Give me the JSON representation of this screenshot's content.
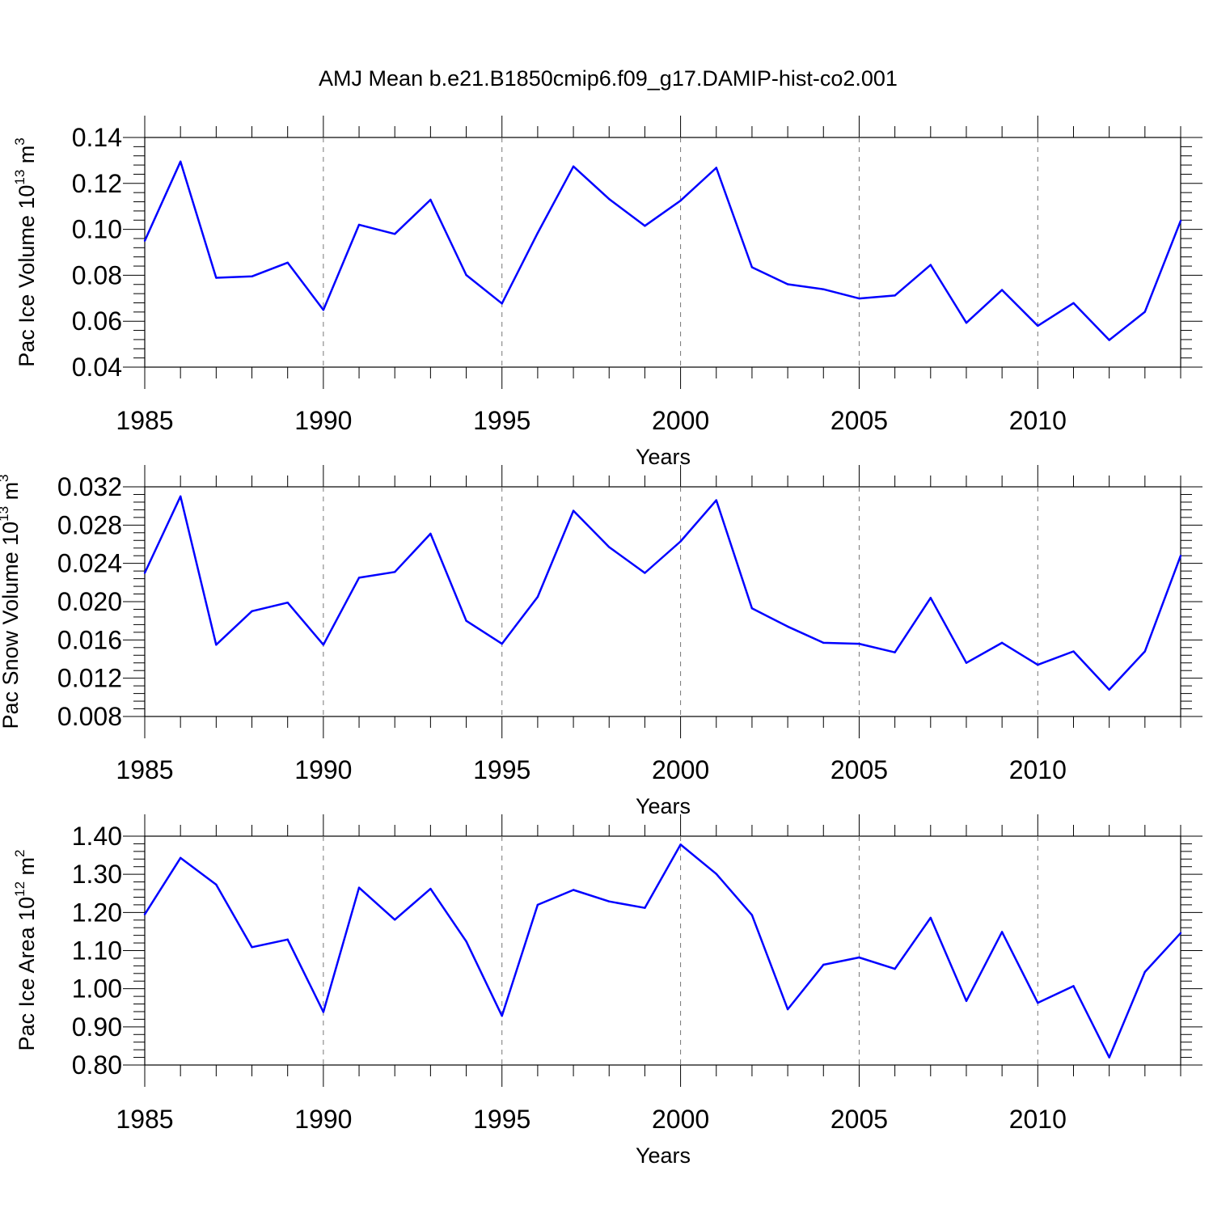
{
  "figure": {
    "title": "AMJ Mean b.e21.B1850cmip6.f09_g17.DAMIP-hist-co2.001"
  },
  "chart_data": [
    {
      "type": "line",
      "xlabel": "Years",
      "ylabel": {
        "text": "Pac Ice Volume 10",
        "exponent": "13",
        "unit": " m",
        "unit_exponent": "3"
      },
      "xlim": [
        1985,
        2014
      ],
      "ylim": [
        0.04,
        0.14
      ],
      "x_ticks": [
        "1985",
        "1990",
        "1995",
        "2000",
        "2005",
        "2010"
      ],
      "y_ticks": [
        "0.04",
        "0.06",
        "0.08",
        "0.10",
        "0.12",
        "0.14"
      ],
      "grid": "vertical dashed at labeled years",
      "color": "#0000ff",
      "x": [
        1985,
        1986,
        1987,
        1988,
        1989,
        1990,
        1991,
        1992,
        1993,
        1994,
        1995,
        1996,
        1997,
        1998,
        1999,
        2000,
        2001,
        2002,
        2003,
        2004,
        2005,
        2006,
        2007,
        2008,
        2009,
        2010,
        2011,
        2012,
        2013,
        2014
      ],
      "values": [
        0.095,
        0.1295,
        0.0789,
        0.0795,
        0.0855,
        0.0649,
        0.102,
        0.098,
        0.1129,
        0.0801,
        0.0677,
        0.0984,
        0.1274,
        0.1132,
        0.1015,
        0.1125,
        0.1268,
        0.0835,
        0.0761,
        0.0739,
        0.0699,
        0.0712,
        0.0845,
        0.0593,
        0.0736,
        0.058,
        0.0679,
        0.0518,
        0.0641,
        0.1037
      ]
    },
    {
      "type": "line",
      "xlabel": "Years",
      "ylabel": {
        "text": "Pac Snow Volume 10",
        "exponent": "13",
        "unit": " m",
        "unit_exponent": "3"
      },
      "xlim": [
        1985,
        2014
      ],
      "ylim": [
        0.008,
        0.032
      ],
      "x_ticks": [
        "1985",
        "1990",
        "1995",
        "2000",
        "2005",
        "2010"
      ],
      "y_ticks": [
        "0.008",
        "0.012",
        "0.016",
        "0.020",
        "0.024",
        "0.028",
        "0.032"
      ],
      "grid": "vertical dashed at labeled years",
      "color": "#0000ff",
      "x": [
        1985,
        1986,
        1987,
        1988,
        1989,
        1990,
        1991,
        1992,
        1993,
        1994,
        1995,
        1996,
        1997,
        1998,
        1999,
        2000,
        2001,
        2002,
        2003,
        2004,
        2005,
        2006,
        2007,
        2008,
        2009,
        2010,
        2011,
        2012,
        2013,
        2014
      ],
      "values": [
        0.023,
        0.031,
        0.0155,
        0.019,
        0.0199,
        0.0155,
        0.0225,
        0.0231,
        0.0271,
        0.018,
        0.0156,
        0.0205,
        0.0295,
        0.0257,
        0.023,
        0.0263,
        0.0306,
        0.0193,
        0.0174,
        0.0157,
        0.0156,
        0.0147,
        0.0204,
        0.0136,
        0.0157,
        0.0134,
        0.0148,
        0.0108,
        0.0148,
        0.0248
      ]
    },
    {
      "type": "line",
      "xlabel": "Years",
      "ylabel": {
        "text": "Pac Ice Area 10",
        "exponent": "12",
        "unit": " m",
        "unit_exponent": "2"
      },
      "xlim": [
        1985,
        2014
      ],
      "ylim": [
        0.8,
        1.4
      ],
      "x_ticks": [
        "1985",
        "1990",
        "1995",
        "2000",
        "2005",
        "2010"
      ],
      "y_ticks": [
        "0.80",
        "0.90",
        "1.00",
        "1.10",
        "1.20",
        "1.30",
        "1.40"
      ],
      "grid": "vertical dashed at labeled years",
      "color": "#0000ff",
      "x": [
        1985,
        1986,
        1987,
        1988,
        1989,
        1990,
        1991,
        1992,
        1993,
        1994,
        1995,
        1996,
        1997,
        1998,
        1999,
        2000,
        2001,
        2002,
        2003,
        2004,
        2005,
        2006,
        2007,
        2008,
        2009,
        2010,
        2011,
        2012,
        2013,
        2014
      ],
      "values": [
        1.195,
        1.343,
        1.273,
        1.109,
        1.129,
        0.939,
        1.265,
        1.181,
        1.262,
        1.124,
        0.929,
        1.22,
        1.259,
        1.229,
        1.212,
        1.378,
        1.301,
        1.193,
        0.946,
        1.063,
        1.082,
        1.052,
        1.186,
        0.968,
        1.149,
        0.963,
        1.007,
        0.82,
        1.044,
        1.146
      ]
    }
  ]
}
